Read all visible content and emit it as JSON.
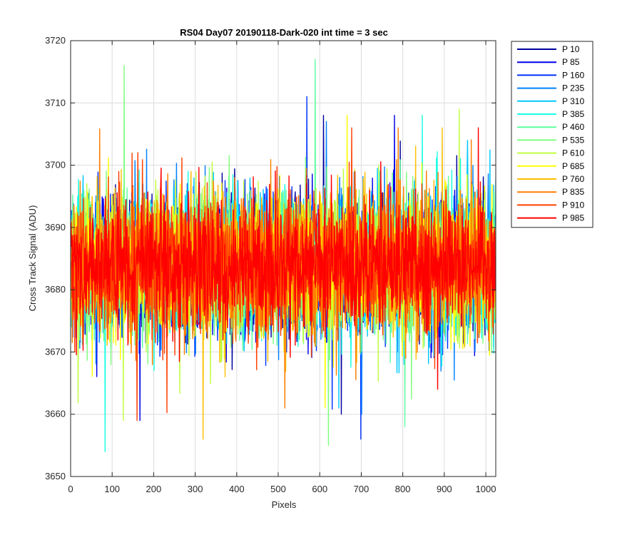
{
  "chart_data": {
    "type": "line",
    "title": "RS04 Day07 20190118-Dark-020 int time = 3 sec",
    "xlabel": "Pixels",
    "ylabel": "Cross Track Signal (ADU)",
    "xlim": [
      0,
      1024
    ],
    "ylim": [
      3650,
      3720
    ],
    "xticks": [
      0,
      100,
      200,
      300,
      400,
      500,
      600,
      700,
      800,
      900,
      1000
    ],
    "yticks": [
      3650,
      3660,
      3670,
      3680,
      3690,
      3700,
      3710,
      3720
    ],
    "grid": true,
    "legend_position": "outside-top-right",
    "series": [
      {
        "name": "P 10",
        "color": "#00009f",
        "mean": 3684,
        "spread": 5.5,
        "min": 3660,
        "max": 3708
      },
      {
        "name": "P 85",
        "color": "#0000e8",
        "mean": 3684,
        "spread": 5.5,
        "min": 3659,
        "max": 3708
      },
      {
        "name": "P 160",
        "color": "#0032ff",
        "mean": 3684,
        "spread": 5.5,
        "min": 3656,
        "max": 3711
      },
      {
        "name": "P 235",
        "color": "#0080ff",
        "mean": 3684,
        "spread": 5.5,
        "min": 3660,
        "max": 3707
      },
      {
        "name": "P 310",
        "color": "#00c8ff",
        "mean": 3684,
        "spread": 5.5,
        "min": 3661,
        "max": 3704
      },
      {
        "name": "P 385",
        "color": "#1affe5",
        "mean": 3684,
        "spread": 5.5,
        "min": 3654,
        "max": 3708
      },
      {
        "name": "P 460",
        "color": "#5fffa0",
        "mean": 3684,
        "spread": 5.5,
        "min": 3658,
        "max": 3717
      },
      {
        "name": "P 535",
        "color": "#80ff7f",
        "mean": 3684,
        "spread": 5.5,
        "min": 3655,
        "max": 3716
      },
      {
        "name": "P 610",
        "color": "#c0ff3f",
        "mean": 3684,
        "spread": 5.5,
        "min": 3659,
        "max": 3709
      },
      {
        "name": "P 685",
        "color": "#ffff00",
        "mean": 3684,
        "spread": 5.5,
        "min": 3661,
        "max": 3708
      },
      {
        "name": "P 760",
        "color": "#ffbf00",
        "mean": 3684,
        "spread": 5.5,
        "min": 3656,
        "max": 3706
      },
      {
        "name": "P 835",
        "color": "#ff7f00",
        "mean": 3684,
        "spread": 5.5,
        "min": 3661,
        "max": 3706
      },
      {
        "name": "P 910",
        "color": "#ff3f00",
        "mean": 3684,
        "spread": 5.5,
        "min": 3659,
        "max": 3706
      },
      {
        "name": "P 985",
        "color": "#ff0000",
        "mean": 3684,
        "spread": 5.0,
        "min": 3664,
        "max": 3706
      }
    ]
  }
}
